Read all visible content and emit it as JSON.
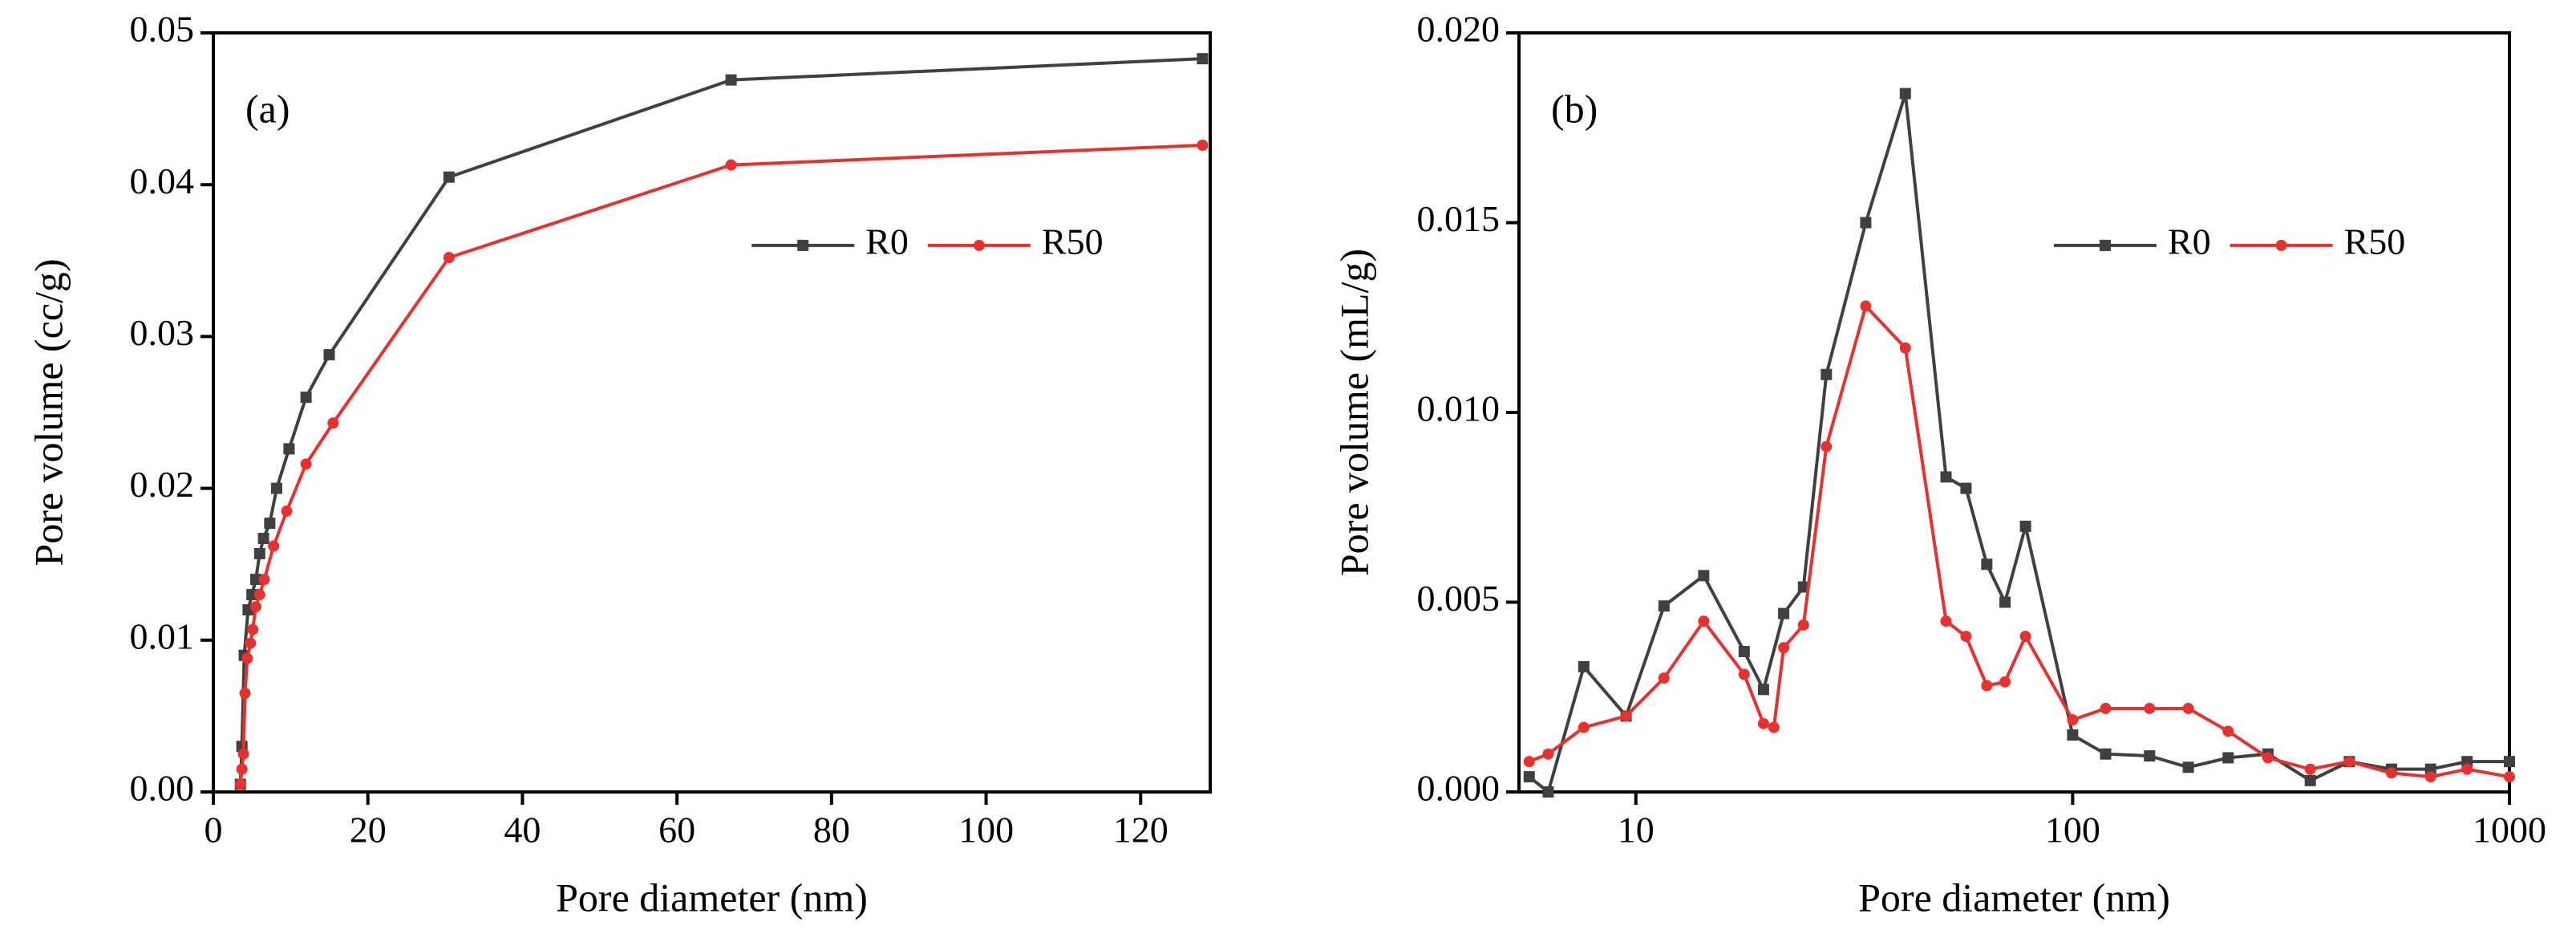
{
  "chart_data": [
    {
      "type": "line",
      "annotation": "(a)",
      "x_label": "Pore diameter (nm)",
      "y_label": "Pore volume (cc/g)",
      "xlim": [
        0,
        129
      ],
      "xticks": [
        0,
        20,
        40,
        60,
        80,
        100,
        120
      ],
      "ylim": [
        0,
        0.05
      ],
      "yticks": [
        {
          "value": 0,
          "label": "0.00"
        },
        0.01,
        0.02,
        0.03,
        0.04,
        0.05
      ],
      "legend": "upper right",
      "series": [
        {
          "name": "R0",
          "color": "#404040",
          "marker": "square",
          "x": [
            3.5,
            3.7,
            4,
            4.5,
            5,
            5.5,
            6,
            6.5,
            7.3,
            8.2,
            9.8,
            12,
            15,
            30.5,
            67,
            128
          ],
          "values": [
            0.0005,
            0.003,
            0.009,
            0.012,
            0.013,
            0.014,
            0.0157,
            0.0167,
            0.0177,
            0.02,
            0.0226,
            0.026,
            0.0288,
            0.0405,
            0.0469,
            0.0483
          ]
        },
        {
          "name": "R50",
          "color": "#e8312f",
          "marker": "circle",
          "x": [
            3.5,
            3.7,
            3.9,
            4.1,
            4.4,
            4.8,
            5.1,
            5.5,
            6,
            6.6,
            7.8,
            9.5,
            12,
            15.5,
            30.5,
            67,
            128
          ],
          "values": [
            0.0005,
            0.0015,
            0.0025,
            0.0065,
            0.0088,
            0.0098,
            0.0107,
            0.0122,
            0.013,
            0.014,
            0.0162,
            0.0185,
            0.0216,
            0.0243,
            0.0352,
            0.0413,
            0.0426
          ]
        }
      ]
    },
    {
      "type": "line",
      "annotation": "(b)",
      "x_label": "Pore diameter (nm)",
      "y_label": "Pore volume (mL/g)",
      "xscale": "log",
      "xlim": [
        5.4,
        1000
      ],
      "xticks": [
        10,
        100,
        1000
      ],
      "ylim": [
        0,
        0.02
      ],
      "yticks": [
        {
          "value": 0,
          "label": "0.000"
        },
        0.005,
        {
          "value": 0.01,
          "label": "0.010"
        },
        0.015,
        {
          "value": 0.02,
          "label": "0.020"
        }
      ],
      "legend": "upper right",
      "series": [
        {
          "name": "R0",
          "color": "#404040",
          "marker": "square",
          "x": [
            5.7,
            6.3,
            7.6,
            9.5,
            11.6,
            14.3,
            17.7,
            19.6,
            21.8,
            24.2,
            27.3,
            33.6,
            41.4,
            51.3,
            57,
            63.6,
            70,
            78,
            100,
            119,
            150,
            184,
            227,
            280,
            350,
            430,
            537,
            660,
            800,
            1000
          ],
          "values": [
            0.0004,
            0,
            0.0033,
            0.002,
            0.0049,
            0.0057,
            0.0037,
            0.0027,
            0.0047,
            0.0054,
            0.011,
            0.015,
            0.0184,
            0.0083,
            0.008,
            0.006,
            0.005,
            0.007,
            0.0015,
            0.001,
            0.00095,
            0.00065,
            0.0009,
            0.001,
            0.0003,
            0.0008,
            0.0006,
            0.0006,
            0.0008,
            0.0008
          ]
        },
        {
          "name": "R50",
          "color": "#e8312f",
          "marker": "circle",
          "x": [
            5.7,
            6.3,
            7.6,
            9.5,
            11.6,
            14.3,
            17.7,
            19.6,
            20.7,
            21.8,
            24.2,
            27.3,
            33.6,
            41.4,
            51.3,
            57,
            63.6,
            70,
            78,
            100,
            119,
            150,
            184,
            227,
            280,
            350,
            430,
            537,
            660,
            800,
            1000
          ],
          "values": [
            0.0008,
            0.001,
            0.0017,
            0.002,
            0.003,
            0.0045,
            0.0031,
            0.0018,
            0.0017,
            0.0038,
            0.0044,
            0.0091,
            0.0128,
            0.0117,
            0.0045,
            0.0041,
            0.0028,
            0.0029,
            0.0041,
            0.0019,
            0.0022,
            0.0022,
            0.0022,
            0.0016,
            0.0009,
            0.0006,
            0.0008,
            0.0005,
            0.0004,
            0.0006,
            0.0004
          ]
        }
      ]
    }
  ]
}
